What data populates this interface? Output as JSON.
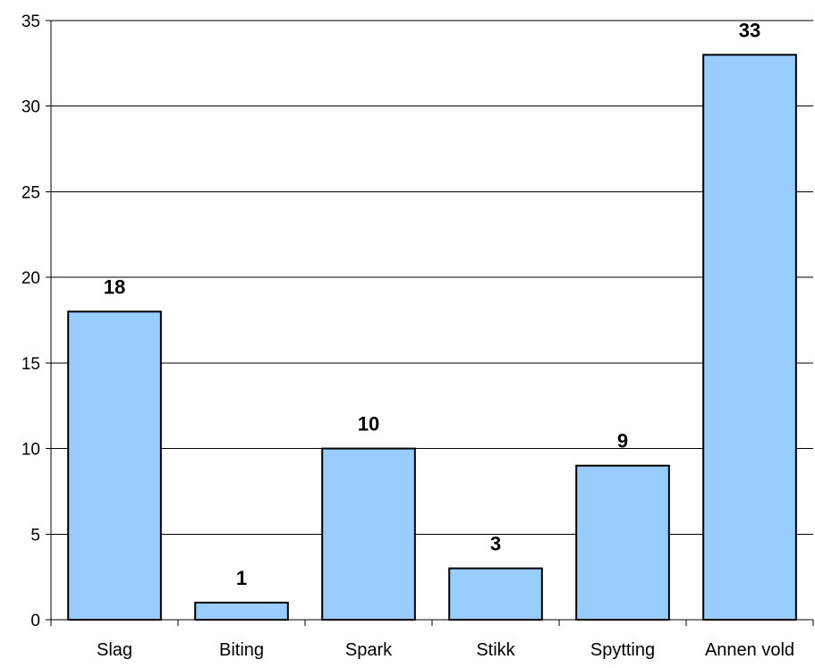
{
  "chart_data": {
    "type": "bar",
    "title": "",
    "xlabel": "",
    "ylabel": "",
    "categories": [
      "Slag",
      "Biting",
      "Spark",
      "Stikk",
      "Spytting",
      "Annen vold"
    ],
    "values": [
      18,
      1,
      10,
      3,
      9,
      33
    ],
    "data_labels": [
      "18",
      "1",
      "10",
      "3",
      "9",
      "33"
    ],
    "ylim": [
      0,
      35
    ],
    "y_ticks": [
      0,
      5,
      10,
      15,
      20,
      25,
      30,
      35
    ],
    "y_tick_labels": [
      "0",
      "5",
      "10",
      "15",
      "20",
      "25",
      "30",
      "35"
    ],
    "grid": true,
    "legend": "none",
    "bar_color": "#99ccff",
    "bar_edge_color": "#000000",
    "grid_color": "#000000"
  }
}
